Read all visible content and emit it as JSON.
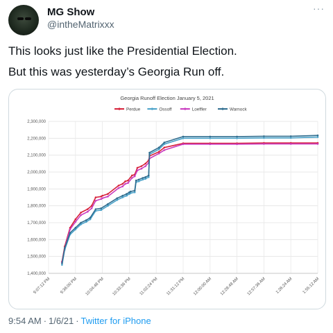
{
  "tweet": {
    "display_name": "MG Show",
    "handle": "@intheMatrixxx",
    "more_icon": "more-icon",
    "lines": [
      "This looks just like the Presidential Election.",
      "But this was yesterday’s Georgia Run off."
    ],
    "time": "9:54 AM",
    "date": "1/6/21",
    "separator": "·",
    "source": "Twitter for iPhone"
  },
  "chart_data": {
    "type": "line",
    "title": "Georgia Runoff Election January 5, 2021",
    "xlabel": "",
    "ylabel": "",
    "x_tick_labels": [
      "9:07:12 PM",
      "9:36:00 PM",
      "10:04:48 PM",
      "10:33:36 PM",
      "11:02:24 PM",
      "11:31:12 PM",
      "12:00:00 AM",
      "12:28:48 AM",
      "12:57:36 AM",
      "1:26:24 AM",
      "1:55:12 AM"
    ],
    "y_tick_labels": [
      "1,400,000",
      "1,500,000",
      "1,600,000",
      "1,700,000",
      "1,800,000",
      "1,900,000",
      "2,000,000",
      "2,100,000",
      "2,200,000",
      "2,300,000"
    ],
    "ylim": [
      1400000,
      2300000
    ],
    "legend_position": "top",
    "grid": true,
    "series": [
      {
        "name": "Perdue",
        "color": "#d6213a",
        "x": [
          0.5,
          0.6,
          0.8,
          1.0,
          1.2,
          1.45,
          1.6,
          1.75,
          1.95,
          2.0,
          2.2,
          2.6,
          2.75,
          2.85,
          2.95,
          3.1,
          3.2,
          3.3,
          3.45,
          3.6,
          3.72,
          3.75,
          4.1,
          4.3,
          5.0,
          6.0,
          7.0,
          8.0,
          9.0,
          10.0
        ],
        "y": [
          1470000,
          1560000,
          1670000,
          1720000,
          1760000,
          1780000,
          1800000,
          1850000,
          1855000,
          1860000,
          1870000,
          1920000,
          1930000,
          1945000,
          1950000,
          1980000,
          1985000,
          2025000,
          2035000,
          2050000,
          2070000,
          2095000,
          2120000,
          2145000,
          2170000,
          2170000,
          2170000,
          2172000,
          2172000,
          2172000
        ]
      },
      {
        "name": "Ossoff",
        "color": "#4aa2c9",
        "x": [
          0.5,
          0.6,
          0.8,
          1.0,
          1.2,
          1.4,
          1.55,
          1.75,
          1.95,
          2.2,
          2.55,
          2.75,
          2.9,
          3.0,
          3.05,
          3.2,
          3.25,
          3.35,
          3.5,
          3.6,
          3.72,
          3.75,
          4.1,
          4.3,
          5.0,
          6.0,
          7.0,
          8.0,
          9.0,
          10.0
        ],
        "y": [
          1450000,
          1540000,
          1630000,
          1660000,
          1690000,
          1705000,
          1720000,
          1770000,
          1775000,
          1800000,
          1835000,
          1850000,
          1860000,
          1870000,
          1875000,
          1880000,
          1940000,
          1945000,
          1955000,
          1960000,
          1970000,
          2105000,
          2135000,
          2165000,
          2200000,
          2200000,
          2200000,
          2202000,
          2202000,
          2207000
        ]
      },
      {
        "name": "Loeffler",
        "color": "#c93bbf",
        "x": [
          0.5,
          0.6,
          0.8,
          1.0,
          1.2,
          1.45,
          1.6,
          1.75,
          1.95,
          2.0,
          2.2,
          2.6,
          2.75,
          2.85,
          2.95,
          3.1,
          3.2,
          3.3,
          3.45,
          3.6,
          3.72,
          3.75,
          4.1,
          4.3,
          5.0,
          6.0,
          7.0,
          8.0,
          9.0,
          10.0
        ],
        "y": [
          1465000,
          1550000,
          1660000,
          1705000,
          1745000,
          1765000,
          1785000,
          1830000,
          1840000,
          1845000,
          1855000,
          1905000,
          1915000,
          1930000,
          1935000,
          1965000,
          1975000,
          2010000,
          2020000,
          2035000,
          2055000,
          2080000,
          2110000,
          2130000,
          2165000,
          2165000,
          2165000,
          2167000,
          2167000,
          2167000
        ]
      },
      {
        "name": "Warnock",
        "color": "#2f6d8f",
        "x": [
          0.5,
          0.6,
          0.8,
          1.0,
          1.2,
          1.4,
          1.55,
          1.75,
          1.95,
          2.2,
          2.55,
          2.75,
          2.9,
          3.0,
          3.05,
          3.2,
          3.25,
          3.35,
          3.5,
          3.6,
          3.72,
          3.75,
          4.1,
          4.3,
          5.0,
          6.0,
          7.0,
          8.0,
          9.0,
          10.0
        ],
        "y": [
          1460000,
          1550000,
          1640000,
          1670000,
          1700000,
          1715000,
          1730000,
          1780000,
          1785000,
          1810000,
          1845000,
          1860000,
          1870000,
          1880000,
          1885000,
          1890000,
          1950000,
          1955000,
          1965000,
          1970000,
          1980000,
          2115000,
          2145000,
          2175000,
          2210000,
          2210000,
          2210000,
          2212000,
          2212000,
          2217000
        ]
      }
    ]
  }
}
